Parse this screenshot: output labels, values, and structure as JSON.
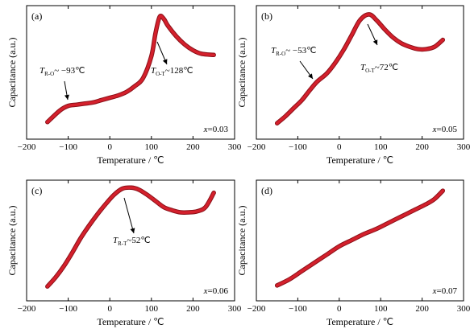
{
  "colors": {
    "curve": "#d4202c",
    "curve_edge": "#8a1018",
    "axis": "#000000"
  },
  "chart_data": [
    {
      "type": "line",
      "panel_label": "(a)",
      "composition_label": "x=0.03",
      "xlabel": "Temperature / ℃",
      "ylabel": "Capacitance (a.u.)",
      "xlim": [
        -200,
        300
      ],
      "xticks": [
        -200,
        -100,
        0,
        100,
        200,
        300
      ],
      "series": [
        {
          "x": [
            -150,
            -120,
            -100,
            -80,
            -60,
            -40,
            -20,
            0,
            20,
            40,
            60,
            80,
            100,
            110,
            120,
            130,
            140,
            160,
            180,
            200,
            220,
            250
          ],
          "y": [
            0.05,
            0.15,
            0.19,
            0.2,
            0.21,
            0.22,
            0.24,
            0.26,
            0.28,
            0.31,
            0.36,
            0.43,
            0.62,
            0.82,
            0.96,
            0.94,
            0.88,
            0.79,
            0.72,
            0.67,
            0.64,
            0.63
          ]
        }
      ],
      "annotations": [
        {
          "main": "T",
          "sub": "R-O",
          "rest": "~ −93℃",
          "x": -93
        },
        {
          "main": "T",
          "sub": "O-T",
          "rest": "~128℃",
          "x": 128
        }
      ]
    },
    {
      "type": "line",
      "panel_label": "(b)",
      "composition_label": "x=0.05",
      "xlabel": "Temperature / ℃",
      "ylabel": "Capacitance (a.u.)",
      "xlim": [
        -200,
        300
      ],
      "xticks": [
        -200,
        -100,
        0,
        100,
        200,
        300
      ],
      "series": [
        {
          "x": [
            -150,
            -130,
            -110,
            -90,
            -70,
            -53,
            -30,
            -10,
            10,
            30,
            50,
            72,
            90,
            110,
            130,
            150,
            170,
            190,
            210,
            230,
            250
          ],
          "y": [
            0.04,
            0.1,
            0.17,
            0.24,
            0.33,
            0.4,
            0.47,
            0.56,
            0.67,
            0.8,
            0.93,
            0.98,
            0.93,
            0.85,
            0.78,
            0.73,
            0.7,
            0.68,
            0.68,
            0.7,
            0.76
          ]
        }
      ],
      "annotations": [
        {
          "main": "T",
          "sub": "R-O",
          "rest": "~ −53℃",
          "x": -53
        },
        {
          "main": "T",
          "sub": "O-T",
          "rest": "~72℃",
          "x": 72
        }
      ]
    },
    {
      "type": "line",
      "panel_label": "(c)",
      "composition_label": "x=0.06",
      "xlabel": "Temperature / ℃",
      "ylabel": "Capacitance (a.u.)",
      "xlim": [
        -200,
        300
      ],
      "xticks": [
        -200,
        -100,
        0,
        100,
        200,
        300
      ],
      "series": [
        {
          "x": [
            -150,
            -130,
            -110,
            -90,
            -70,
            -50,
            -30,
            -10,
            10,
            30,
            52,
            70,
            90,
            110,
            130,
            150,
            170,
            190,
            210,
            230,
            250
          ],
          "y": [
            0.03,
            0.12,
            0.23,
            0.36,
            0.5,
            0.62,
            0.73,
            0.83,
            0.92,
            0.98,
            0.99,
            0.97,
            0.92,
            0.86,
            0.8,
            0.77,
            0.75,
            0.75,
            0.76,
            0.8,
            0.94
          ]
        }
      ],
      "annotations": [
        {
          "main": "T",
          "sub": "R-T",
          "rest": "~52℃",
          "x": 52
        }
      ]
    },
    {
      "type": "line",
      "panel_label": "(d)",
      "composition_label": "x=0.07",
      "xlabel": "Temperature / ℃",
      "ylabel": "Capacitance (a.u.)",
      "xlim": [
        -200,
        300
      ],
      "xticks": [
        -200,
        -100,
        0,
        100,
        200,
        300
      ],
      "series": [
        {
          "x": [
            -150,
            -120,
            -90,
            -60,
            -30,
            0,
            30,
            60,
            90,
            120,
            150,
            180,
            210,
            230,
            250
          ],
          "y": [
            0.04,
            0.1,
            0.18,
            0.26,
            0.34,
            0.42,
            0.48,
            0.54,
            0.59,
            0.65,
            0.71,
            0.77,
            0.83,
            0.88,
            0.96
          ]
        }
      ],
      "annotations": []
    }
  ]
}
